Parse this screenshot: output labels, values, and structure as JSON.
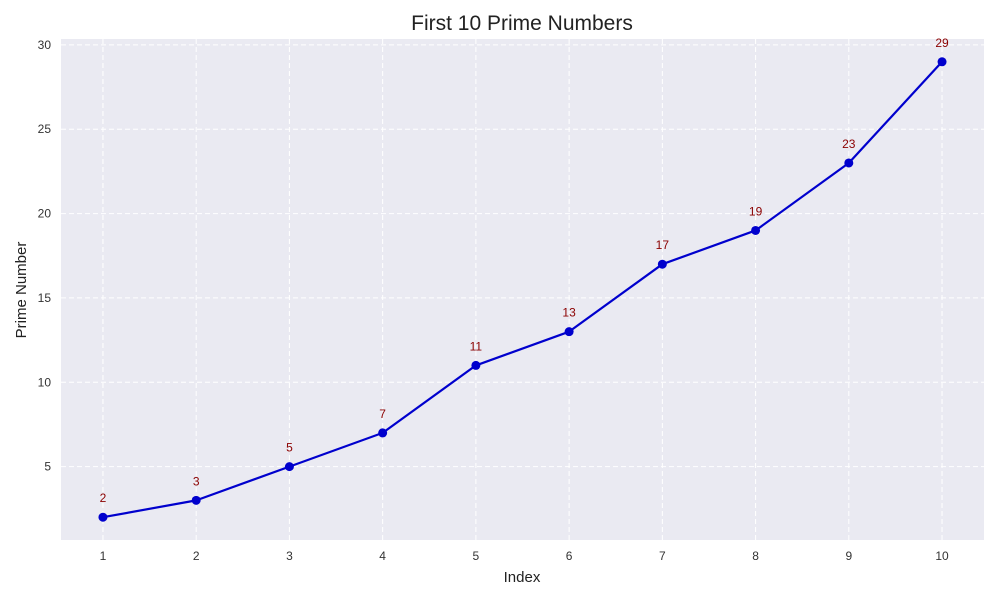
{
  "chart_data": {
    "type": "line",
    "title": "First 10 Prime Numbers",
    "xlabel": "Index",
    "ylabel": "Prime Number",
    "x": [
      1,
      2,
      3,
      4,
      5,
      6,
      7,
      8,
      9,
      10
    ],
    "series": [
      {
        "values": [
          2,
          3,
          5,
          7,
          11,
          13,
          17,
          19,
          23,
          29
        ]
      }
    ],
    "data_labels": [
      "2",
      "3",
      "5",
      "7",
      "11",
      "13",
      "17",
      "19",
      "23",
      "29"
    ],
    "xlim": [
      0.55,
      10.45
    ],
    "ylim": [
      0.65,
      30.35
    ],
    "xticks": [
      1,
      2,
      3,
      4,
      5,
      6,
      7,
      8,
      9,
      10
    ],
    "yticks": [
      5,
      10,
      15,
      20,
      25,
      30
    ],
    "grid": true,
    "colors": {
      "plot_background": "#eaeaf2",
      "grid": "#ffffff",
      "line": "#0000cd",
      "marker": "#0000cd",
      "data_label": "#8b0000"
    }
  }
}
